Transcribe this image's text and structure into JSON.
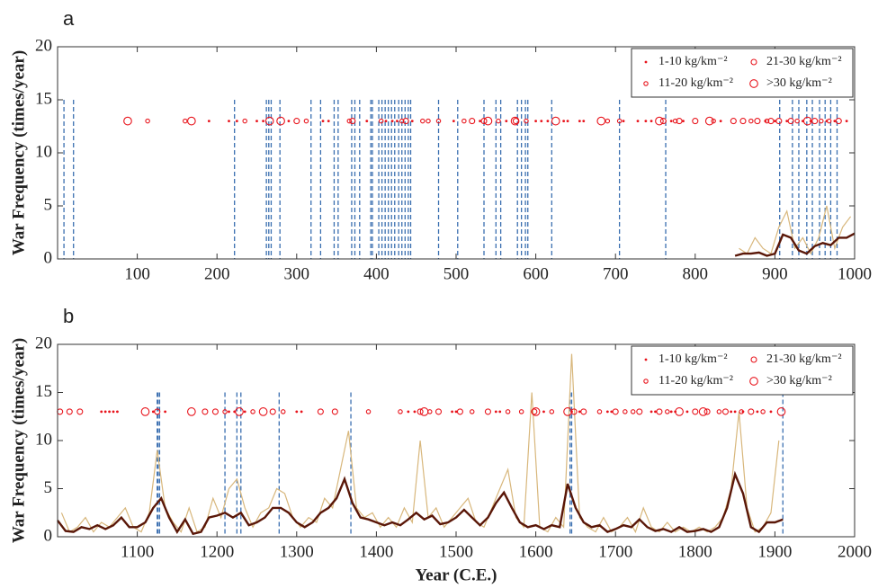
{
  "chart_data": [
    {
      "type": "line",
      "label": "a",
      "y_label": "War Frequency (times/year)",
      "xlim": [
        0,
        1000
      ],
      "xticks": [
        100,
        200,
        300,
        400,
        500,
        600,
        700,
        800,
        900,
        1000
      ],
      "ylim": [
        0,
        20
      ],
      "yticks": [
        0,
        5,
        10,
        15,
        20
      ],
      "legend": "upper right",
      "event_color": "#3a6fb0",
      "event_top": 15,
      "events": [
        8,
        20,
        222,
        262,
        265,
        268,
        279,
        318,
        330,
        347,
        352,
        369,
        373,
        379,
        393,
        395,
        403,
        407,
        411,
        415,
        419,
        423,
        428,
        432,
        436,
        440,
        443,
        478,
        502,
        535,
        550,
        556,
        577,
        582,
        587,
        590,
        620,
        705,
        763,
        906,
        922,
        930,
        940,
        947,
        956,
        963,
        970,
        978
      ],
      "dust": [
        {
          "name": "1-10 kg/km⁻²",
          "color": "#e8141c",
          "marker": "dot",
          "x": [
            190,
            215,
            225,
            250,
            258,
            290,
            333,
            340,
            388,
            412,
            420,
            426,
            445,
            497,
            530,
            563,
            600,
            607,
            615,
            635,
            640,
            655,
            660,
            710,
            728,
            738,
            745,
            770,
            785,
            832,
            888,
            900,
            915,
            935,
            945,
            965,
            975,
            990
          ],
          "values": [
            13,
            13,
            13,
            13,
            13,
            13,
            13,
            13,
            13,
            13,
            13,
            13,
            13,
            13,
            13,
            13,
            13,
            13,
            13,
            13,
            13,
            13,
            13,
            13,
            13,
            13,
            13,
            13,
            13,
            13,
            13,
            13,
            13,
            13,
            13,
            13,
            13,
            13
          ]
        },
        {
          "name": "11-20 kg/km⁻²",
          "color": "#e8141c",
          "marker": "circle",
          "x": [
            113,
            160,
            235,
            312,
            366,
            406,
            432,
            458,
            465,
            478,
            510,
            553,
            588,
            690,
            705,
            775,
            823,
            870,
            890,
            928,
            958,
            968
          ],
          "values": [
            13,
            13,
            13,
            13,
            13,
            13,
            13,
            13,
            13,
            13,
            13,
            13,
            13,
            13,
            13,
            13,
            13,
            13,
            13,
            13,
            13,
            13
          ]
        },
        {
          "name": "21-30 kg/km⁻²",
          "color": "#e8141c",
          "marker": "circle",
          "x": [
            300,
            370,
            437,
            520,
            535,
            575,
            760,
            780,
            800,
            848,
            860,
            878,
            895,
            905,
            920,
            950,
            980
          ],
          "values": [
            13,
            13,
            13,
            13,
            13,
            13,
            13,
            13,
            13,
            13,
            13,
            13,
            13,
            13,
            13,
            13,
            13
          ]
        },
        {
          "name": ">30 kg/km⁻²",
          "color": "#e8141c",
          "marker": "circle",
          "x": [
            88,
            168,
            266,
            280,
            540,
            574,
            625,
            682,
            755,
            818,
            941
          ],
          "values": [
            13,
            13,
            13,
            13,
            13,
            13,
            13,
            13,
            13,
            13,
            13
          ]
        }
      ],
      "series": [
        {
          "color": "#d8b77c",
          "x": [
            855,
            865,
            875,
            885,
            895,
            905,
            915,
            925,
            935,
            945,
            955,
            965,
            975,
            985,
            995
          ],
          "values": [
            1,
            0.5,
            2,
            1,
            0.5,
            3,
            4.5,
            1,
            2,
            0.5,
            2,
            5,
            1,
            3,
            4
          ]
        },
        {
          "color": "#5a1708",
          "x": [
            850,
            860,
            870,
            880,
            890,
            900,
            910,
            920,
            930,
            940,
            950,
            960,
            970,
            980,
            990,
            1000
          ],
          "values": [
            0.3,
            0.5,
            0.5,
            0.6,
            0.3,
            0.5,
            2.3,
            2.0,
            0.8,
            0.5,
            1.2,
            1.5,
            1.3,
            2.0,
            2.0,
            2.4
          ]
        }
      ]
    },
    {
      "type": "line",
      "label": "b",
      "y_label": "War Frequency (times/year)",
      "x_label": "Year (C.E.)",
      "xlim": [
        1000,
        2000
      ],
      "xticks": [
        1100,
        1200,
        1300,
        1400,
        1500,
        1600,
        1700,
        1800,
        1900,
        2000
      ],
      "ylim": [
        0,
        20
      ],
      "yticks": [
        0,
        5,
        10,
        15,
        20
      ],
      "legend": "upper right",
      "event_color": "#3a6fb0",
      "event_top": 15,
      "events": [
        1125,
        1126,
        1128,
        1210,
        1225,
        1230,
        1278,
        1368,
        1643,
        1645,
        1910
      ],
      "dust": [
        {
          "name": "1-10 kg/km⁻²",
          "color": "#e8141c",
          "marker": "dot",
          "x": [
            1055,
            1060,
            1065,
            1070,
            1075,
            1120,
            1135,
            1215,
            1222,
            1235,
            1300,
            1306,
            1440,
            1448,
            1495,
            1500,
            1550,
            1555,
            1610,
            1645,
            1655,
            1690,
            1695,
            1745,
            1750,
            1770,
            1775,
            1790,
            1845,
            1850,
            1860,
            1878,
            1895
          ],
          "values": [
            13,
            13,
            13,
            13,
            13,
            13,
            13,
            13,
            13,
            13,
            13,
            13,
            13,
            13,
            13,
            13,
            13,
            13,
            13,
            13,
            13,
            13,
            13,
            13,
            13,
            13,
            13,
            13,
            13,
            13,
            13,
            13,
            13
          ]
        },
        {
          "name": "11-20 kg/km⁻²",
          "color": "#e8141c",
          "marker": "circle",
          "x": [
            1210,
            1245,
            1283,
            1390,
            1430,
            1467,
            1520,
            1565,
            1582,
            1620,
            1680,
            1712,
            1722,
            1765,
            1830,
            1858,
            1885
          ],
          "values": [
            13,
            13,
            13,
            13,
            13,
            13,
            13,
            13,
            13,
            13,
            13,
            13,
            13,
            13,
            13,
            13,
            13
          ]
        },
        {
          "name": "21-30 kg/km⁻²",
          "color": "#e8141c",
          "marker": "circle",
          "x": [
            1003,
            1015,
            1028,
            1125,
            1185,
            1198,
            1270,
            1330,
            1348,
            1455,
            1478,
            1505,
            1540,
            1598,
            1648,
            1660,
            1700,
            1730,
            1755,
            1800,
            1815,
            1838,
            1870
          ],
          "values": [
            13,
            13,
            13,
            13,
            13,
            13,
            13,
            13,
            13,
            13,
            13,
            13,
            13,
            13,
            13,
            13,
            13,
            13,
            13,
            13,
            13,
            13,
            13
          ]
        },
        {
          "name": ">30 kg/km⁻²",
          "color": "#e8141c",
          "marker": "circle",
          "x": [
            1110,
            1168,
            1228,
            1258,
            1460,
            1600,
            1640,
            1780,
            1810,
            1908
          ],
          "values": [
            13,
            13,
            13,
            13,
            13,
            13,
            13,
            13,
            13,
            13
          ]
        }
      ],
      "series": [
        {
          "color": "#d8b77c",
          "x": [
            1005,
            1015,
            1025,
            1035,
            1045,
            1055,
            1065,
            1075,
            1085,
            1095,
            1105,
            1115,
            1125,
            1135,
            1145,
            1155,
            1165,
            1175,
            1185,
            1195,
            1205,
            1215,
            1225,
            1235,
            1245,
            1255,
            1265,
            1275,
            1285,
            1295,
            1305,
            1315,
            1325,
            1335,
            1345,
            1355,
            1365,
            1375,
            1385,
            1395,
            1405,
            1415,
            1425,
            1435,
            1445,
            1455,
            1465,
            1475,
            1485,
            1495,
            1505,
            1515,
            1525,
            1535,
            1545,
            1555,
            1565,
            1575,
            1585,
            1595,
            1605,
            1615,
            1625,
            1635,
            1645,
            1655,
            1665,
            1675,
            1685,
            1695,
            1705,
            1715,
            1725,
            1735,
            1745,
            1755,
            1765,
            1775,
            1785,
            1795,
            1805,
            1815,
            1825,
            1835,
            1845,
            1855,
            1865,
            1875,
            1885,
            1895,
            1905
          ],
          "values": [
            2.5,
            0.5,
            1,
            2,
            0.5,
            1.5,
            1,
            2,
            3,
            1,
            0.5,
            2.5,
            9,
            3,
            1.5,
            0.5,
            3,
            0.5,
            1,
            4,
            2,
            5,
            6,
            3,
            1,
            2.5,
            3,
            5,
            4.5,
            2,
            1,
            2,
            1.5,
            4,
            3,
            7,
            11,
            3,
            2,
            2.5,
            1,
            2,
            1,
            3,
            1.5,
            10,
            2,
            3,
            1,
            2,
            3,
            4,
            1.5,
            1,
            3,
            5,
            7,
            2,
            1,
            15,
            1,
            0.5,
            2,
            1,
            19,
            2,
            1,
            0.5,
            2,
            0.5,
            1,
            2,
            0.5,
            3,
            1,
            0.5,
            1.5,
            0.5,
            1,
            0.5,
            1,
            0.5,
            1,
            2,
            5,
            13,
            3,
            0.5,
            1,
            2.5,
            10
          ]
        },
        {
          "color": "#5a1708",
          "x": [
            1000,
            1010,
            1020,
            1030,
            1040,
            1050,
            1060,
            1070,
            1080,
            1090,
            1100,
            1110,
            1120,
            1130,
            1140,
            1150,
            1160,
            1170,
            1180,
            1190,
            1200,
            1210,
            1220,
            1230,
            1240,
            1250,
            1260,
            1270,
            1280,
            1290,
            1300,
            1310,
            1320,
            1330,
            1340,
            1350,
            1360,
            1370,
            1380,
            1390,
            1400,
            1410,
            1420,
            1430,
            1440,
            1450,
            1460,
            1470,
            1480,
            1490,
            1500,
            1510,
            1520,
            1530,
            1540,
            1550,
            1560,
            1570,
            1580,
            1590,
            1600,
            1610,
            1620,
            1630,
            1640,
            1650,
            1660,
            1670,
            1680,
            1690,
            1700,
            1710,
            1720,
            1730,
            1740,
            1750,
            1760,
            1770,
            1780,
            1790,
            1800,
            1810,
            1820,
            1830,
            1840,
            1850,
            1860,
            1870,
            1880,
            1890,
            1900,
            1910
          ],
          "values": [
            1.7,
            0.6,
            0.5,
            1.0,
            0.8,
            1.2,
            0.8,
            1.2,
            2.0,
            1.0,
            1.0,
            1.5,
            3.0,
            4.0,
            2.0,
            0.5,
            1.8,
            0.3,
            0.5,
            2.0,
            2.2,
            2.5,
            2.0,
            2.5,
            1.2,
            1.5,
            2.0,
            3.0,
            3.0,
            2.5,
            1.5,
            1.0,
            1.5,
            2.5,
            3.0,
            4.0,
            6.0,
            3.5,
            2.0,
            1.8,
            1.5,
            1.2,
            1.5,
            1.2,
            1.8,
            2.5,
            1.8,
            2.2,
            1.3,
            1.5,
            2.0,
            2.8,
            2.0,
            1.2,
            2.0,
            3.5,
            4.6,
            3.0,
            1.5,
            1.0,
            1.2,
            0.8,
            1.2,
            1.0,
            5.5,
            3.0,
            1.5,
            1.0,
            1.2,
            0.5,
            0.8,
            1.2,
            1.0,
            1.8,
            1.0,
            0.6,
            0.8,
            0.5,
            1.0,
            0.5,
            0.6,
            0.8,
            0.5,
            1.0,
            3.0,
            6.5,
            4.5,
            1.0,
            0.5,
            1.5,
            1.5,
            1.8
          ]
        }
      ]
    }
  ]
}
